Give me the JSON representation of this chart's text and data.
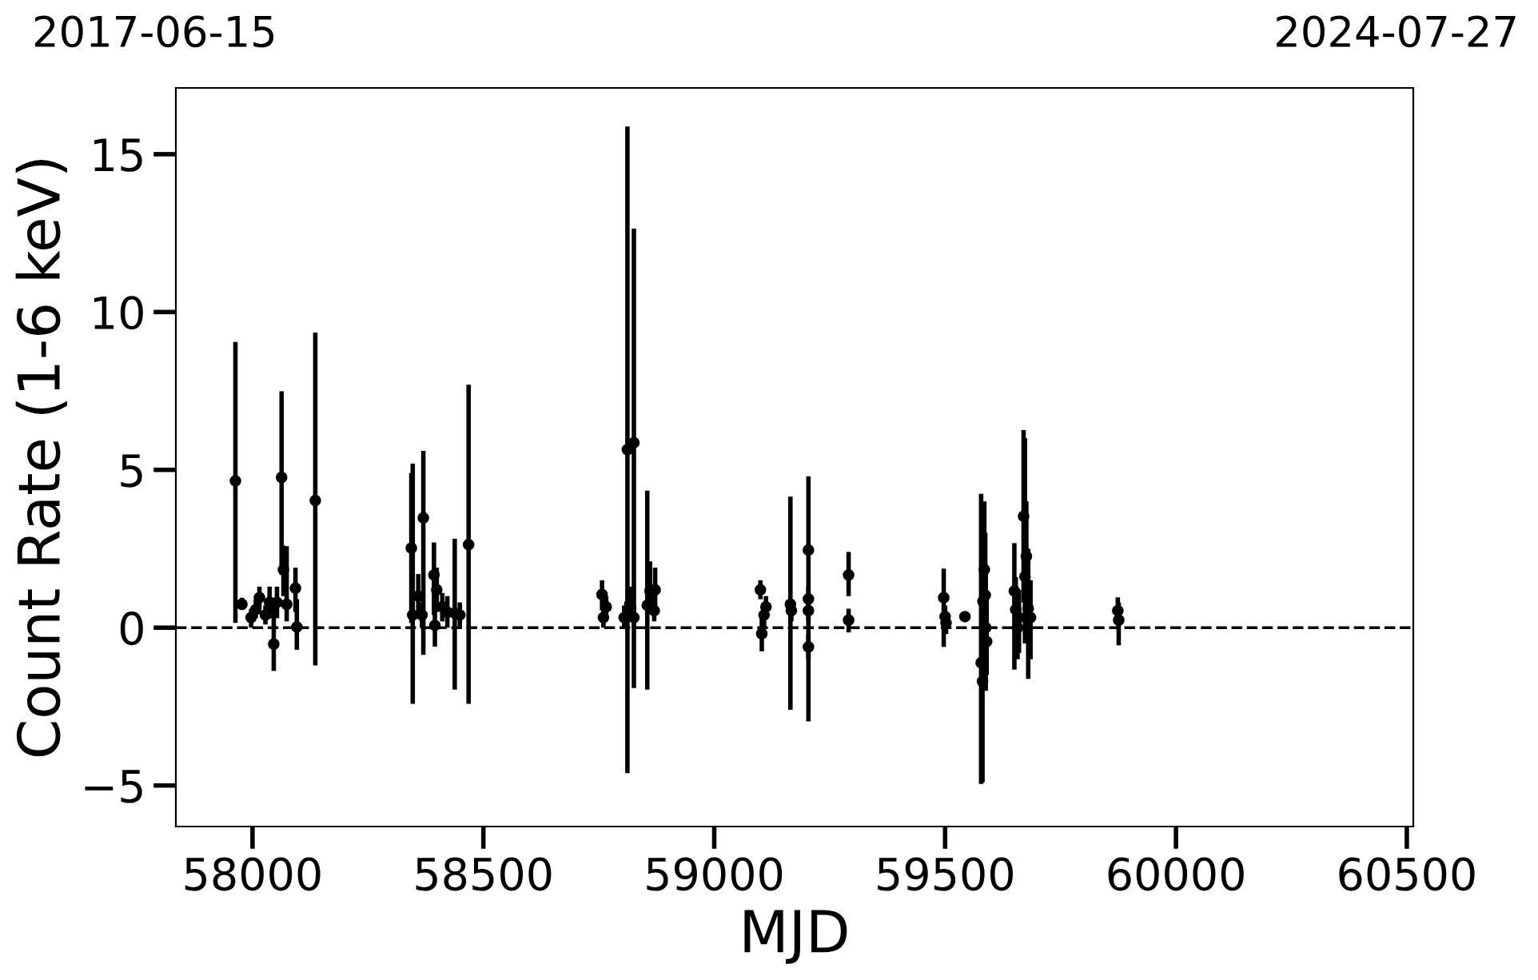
{
  "chart_data": {
    "type": "scatter",
    "xlabel": "MJD",
    "ylabel": "Count Rate (1-6 keV)",
    "annotations": [
      "2017-06-15",
      "2024-07-27"
    ],
    "xlim": [
      57834,
      60514
    ],
    "xticks": [
      58000,
      58500,
      59000,
      59500,
      60000,
      60500
    ],
    "ylim": [
      -6.3,
      17.1
    ],
    "yticks": [
      {
        "value": -5,
        "label": "−5"
      },
      0,
      5,
      10,
      15
    ],
    "grid": false,
    "legend": false,
    "marker": "circle",
    "ref_lines": [
      {
        "axis": "y",
        "value": 0,
        "color": "#000000",
        "line_style": "dashed"
      }
    ],
    "series": [
      {
        "color": "#000000",
        "x": [
          57963,
          57977,
          57997,
          58007,
          58015,
          58028,
          58037,
          58046,
          58053,
          58063,
          58067,
          58074,
          58093,
          58096,
          58136,
          58344,
          58347,
          58359,
          58367,
          58370,
          58393,
          58395,
          58399,
          58411,
          58422,
          58438,
          58449,
          58468,
          58757,
          58760,
          58766,
          58805,
          58812,
          58817,
          58826,
          58826,
          58855,
          58861,
          58870,
          58872,
          59100,
          59103,
          59108,
          59112,
          59165,
          59167,
          59204,
          59204,
          59204,
          59204,
          59291,
          59291,
          59497,
          59500,
          59502,
          59543,
          59578,
          59581,
          59582,
          59585,
          59587,
          59588,
          59590,
          59650,
          59653,
          59657,
          59660,
          59670,
          59673,
          59676,
          59680,
          59685,
          59874,
          59876
        ],
        "values": [
          4.65,
          0.74,
          0.32,
          0.57,
          0.95,
          0.4,
          0.8,
          -0.52,
          0.8,
          4.76,
          1.84,
          0.74,
          1.25,
          0.02,
          4.03,
          2.52,
          0.4,
          1.0,
          0.4,
          3.48,
          1.67,
          0.07,
          1.2,
          0.66,
          0.49,
          0.46,
          0.4,
          2.63,
          1.05,
          0.32,
          0.66,
          0.32,
          5.64,
          0.74,
          5.86,
          0.32,
          0.71,
          1.16,
          0.54,
          1.2,
          1.2,
          -0.19,
          0.4,
          0.66,
          0.74,
          0.54,
          2.46,
          0.91,
          0.54,
          -0.61,
          1.67,
          0.24,
          0.95,
          0.35,
          0.15,
          0.35,
          -1.11,
          -1.7,
          0.83,
          1.84,
          1.03,
          0,
          -0.44,
          1.16,
          0.57,
          0,
          0.32,
          3.53,
          1.62,
          2.26,
          0.61,
          0.32,
          0.54,
          0.24
        ],
        "errors": [
          [
            0.15,
            9.05
          ],
          [
            0.6,
            0.95
          ],
          [
            0.0,
            0.6
          ],
          [
            0.3,
            0.9
          ],
          [
            0.6,
            1.3
          ],
          [
            0.1,
            0.7
          ],
          [
            0.3,
            1.3
          ],
          [
            -1.37,
            0.83
          ],
          [
            0.3,
            1.3
          ],
          [
            1.67,
            7.49
          ],
          [
            1.0,
            2.6
          ],
          [
            0.2,
            2.58
          ],
          [
            0.5,
            1.9
          ],
          [
            -0.7,
            0.9
          ],
          [
            -1.2,
            9.35
          ],
          [
            0.15,
            4.9
          ],
          [
            -2.41,
            5.2
          ],
          [
            0.3,
            1.7
          ],
          [
            0.0,
            0.8
          ],
          [
            -0.86,
            5.6
          ],
          [
            0.4,
            2.7
          ],
          [
            -0.6,
            0.7
          ],
          [
            0.5,
            1.9
          ],
          [
            0.2,
            1.1
          ],
          [
            0.0,
            1.0
          ],
          [
            -1.96,
            2.82
          ],
          [
            0.0,
            0.8
          ],
          [
            -2.41,
            7.7
          ],
          [
            0.55,
            1.5
          ],
          [
            0.0,
            0.7
          ],
          [
            0.3,
            1.0
          ],
          [
            0.0,
            0.7
          ],
          [
            -4.61,
            15.88
          ],
          [
            0.2,
            1.3
          ],
          [
            -1.91,
            12.64
          ],
          [
            0.0,
            0.7
          ],
          [
            -1.96,
            4.34
          ],
          [
            0.5,
            2.1
          ],
          [
            0.2,
            1.0
          ],
          [
            0.5,
            1.9
          ],
          [
            0.9,
            1.5
          ],
          [
            -0.75,
            0.5
          ],
          [
            0.0,
            0.8
          ],
          [
            0.3,
            1.0
          ],
          [
            -2.6,
            4.15
          ],
          [
            0.2,
            0.9
          ],
          [
            -2.97,
            4.79
          ],
          [
            0.5,
            1.3
          ],
          [
            0.2,
            0.9
          ],
          [
            -1.0,
            -0.2
          ],
          [
            1.0,
            2.4
          ],
          [
            -0.15,
            0.6
          ],
          [
            -0.61,
            1.87
          ],
          [
            0.0,
            0.7
          ],
          [
            -0.2,
            0.5
          ],
          [
            0.2,
            0.5
          ],
          [
            -4.95,
            4.24
          ],
          [
            -4.9,
            3.8
          ],
          [
            -1.5,
            3.0
          ],
          [
            -1.0,
            4.0
          ],
          [
            -1.0,
            3.0
          ],
          [
            -2.0,
            2.0
          ],
          [
            -1.5,
            1.0
          ],
          [
            -1.33,
            2.68
          ],
          [
            -0.5,
            1.6
          ],
          [
            -1.0,
            1.0
          ],
          [
            -0.8,
            1.2
          ],
          [
            0.8,
            6.26
          ],
          [
            -0.5,
            6.0
          ],
          [
            0.3,
            4.0
          ],
          [
            -1.62,
            2.5
          ],
          [
            -1.0,
            1.5
          ],
          [
            0.1,
            0.96
          ],
          [
            -0.56,
            0.8
          ]
        ]
      }
    ]
  }
}
